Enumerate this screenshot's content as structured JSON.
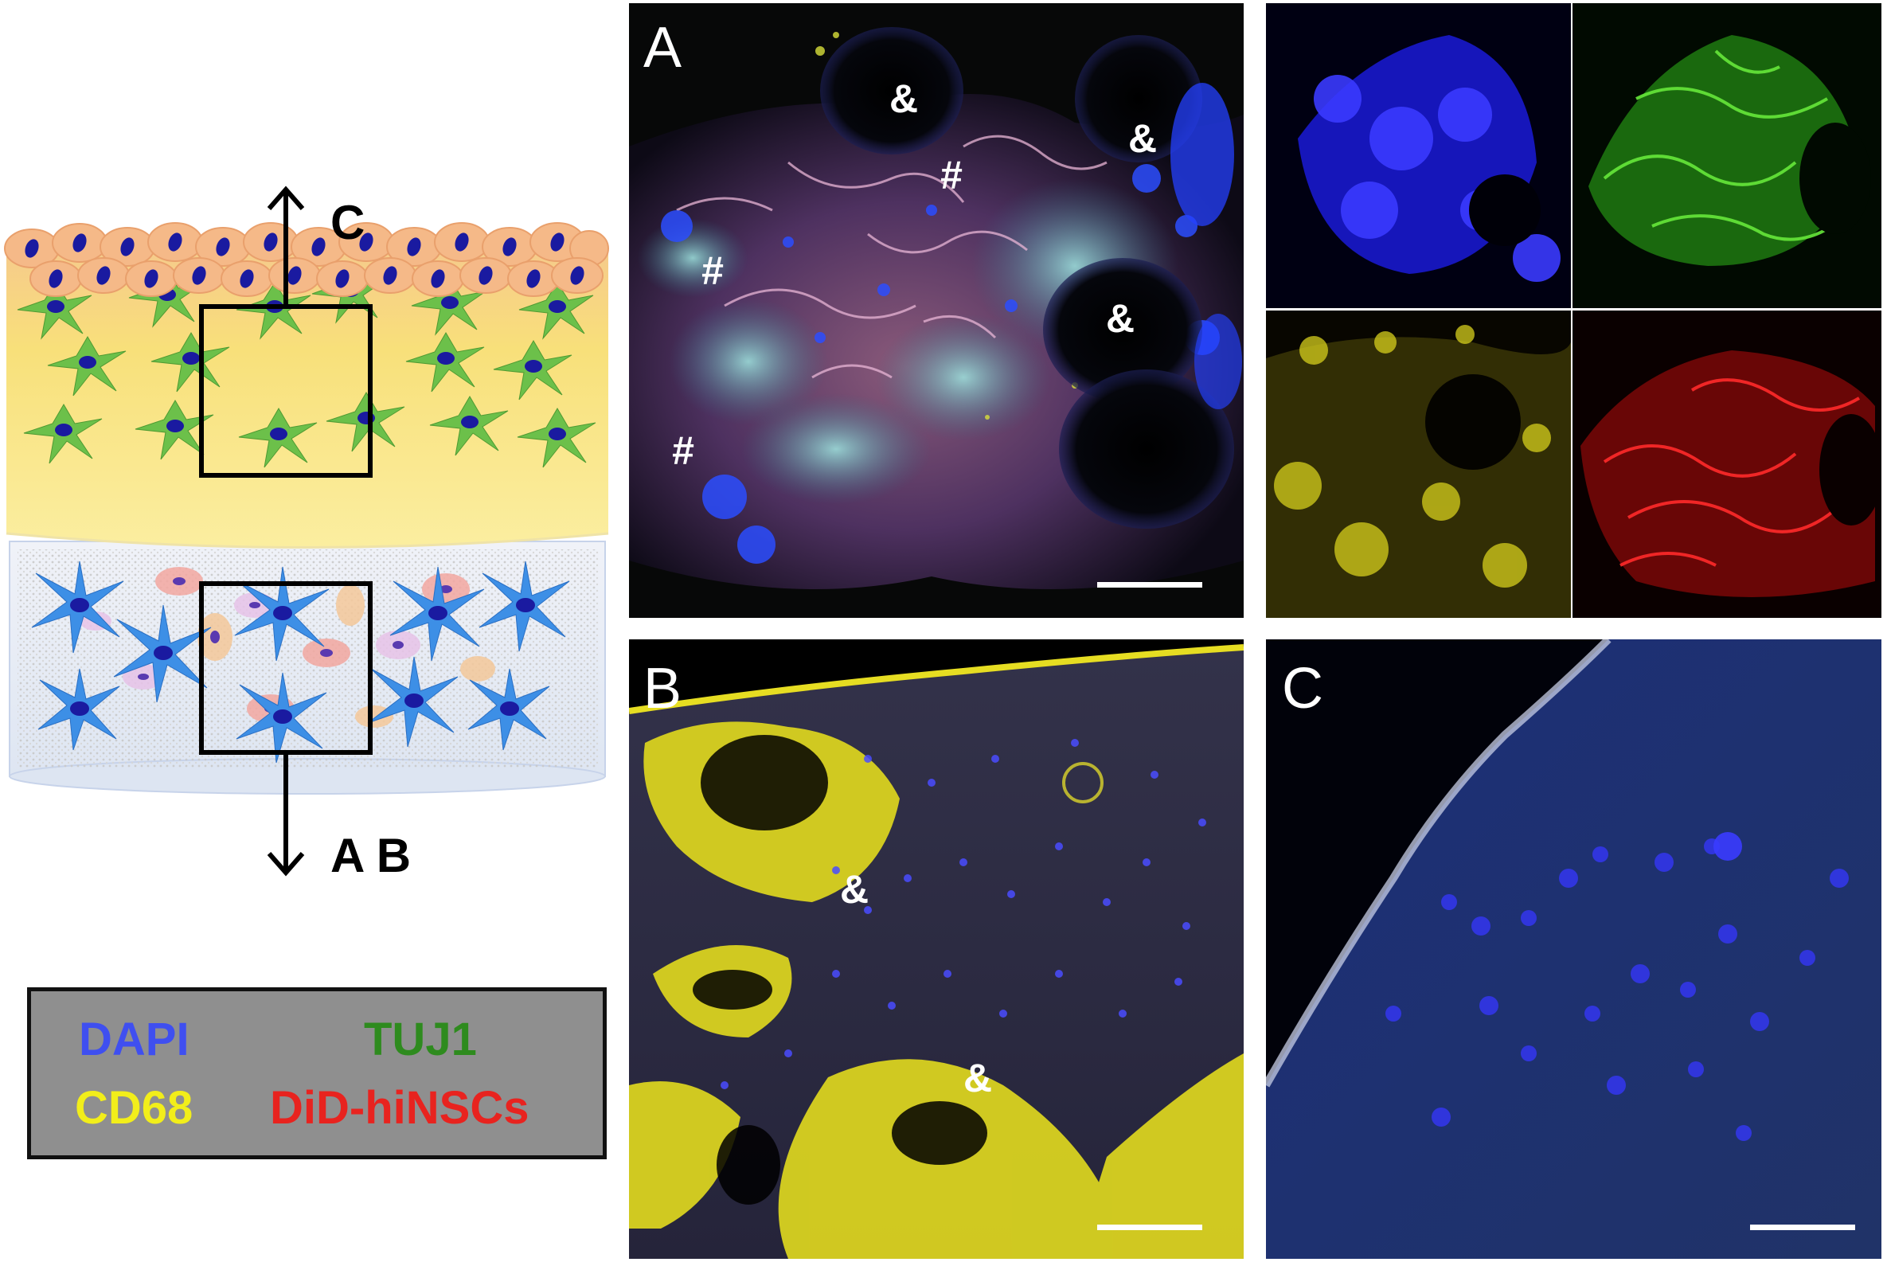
{
  "diagram": {
    "arrow_up_label": "C",
    "arrow_down_label": "A B"
  },
  "legend": {
    "items": [
      {
        "label": "DAPI",
        "color": "#3f4ff0"
      },
      {
        "label": "TUJ1",
        "color": "#2e8b1e"
      },
      {
        "label": "CD68",
        "color": "#f2ee1a"
      },
      {
        "label": "DiD-hiNSCs",
        "color": "#e8231f"
      }
    ]
  },
  "panels": {
    "A": {
      "label": "A",
      "marks": [
        "&",
        "&",
        "&",
        "#",
        "#",
        "#"
      ]
    },
    "B": {
      "label": "B",
      "marks": [
        "&",
        "&"
      ]
    },
    "C": {
      "label": "C"
    },
    "channels": [
      "blue",
      "green",
      "yellow",
      "red"
    ]
  }
}
